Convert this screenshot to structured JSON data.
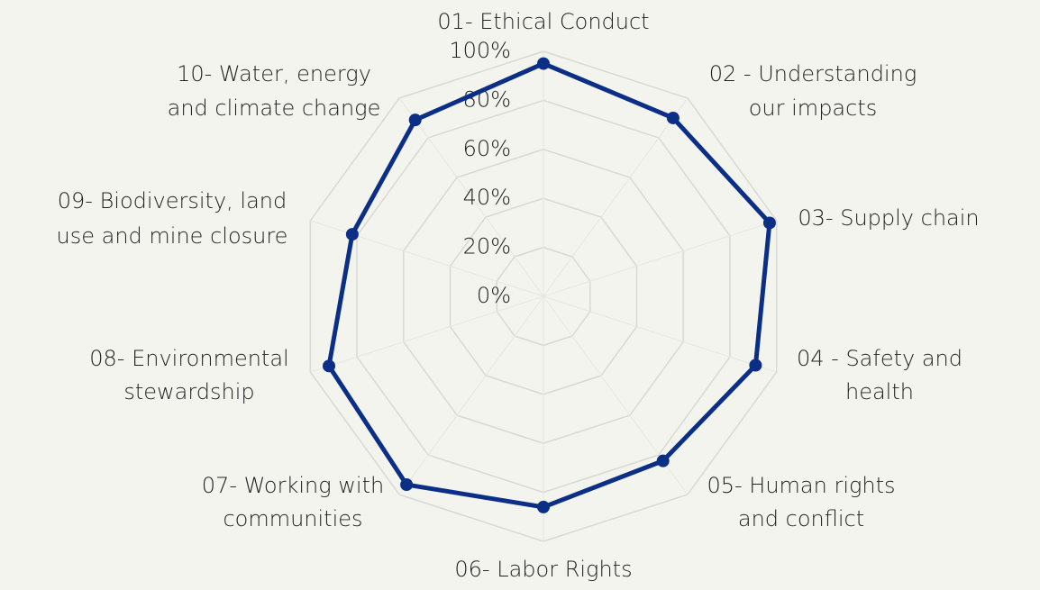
{
  "chart_data": {
    "type": "radar",
    "categories": [
      [
        "01- Ethical Conduct"
      ],
      [
        "02 - Understanding",
        "our impacts"
      ],
      [
        "03- Supply chain"
      ],
      [
        "04 - Safety and",
        "health"
      ],
      [
        "05- Human rights",
        "and conflict"
      ],
      [
        "06- Labor Rights"
      ],
      [
        "07- Working with",
        "communities"
      ],
      [
        "08- Environmental",
        "stewardship"
      ],
      [
        "09- Biodiversity, land",
        "use and mine closure"
      ],
      [
        "10- Water, energy",
        "and climate change"
      ]
    ],
    "series": [
      {
        "color": "#0b2f86",
        "values": [
          95,
          90,
          97,
          91,
          83,
          86,
          95,
          92,
          82,
          89
        ]
      }
    ],
    "rlim": [
      0,
      100
    ],
    "rticks": [
      {
        "value": 0,
        "label": "0%"
      },
      {
        "value": 20,
        "label": "20%"
      },
      {
        "value": 40,
        "label": "40%"
      },
      {
        "value": 60,
        "label": "60%"
      },
      {
        "value": 80,
        "label": "80%"
      },
      {
        "value": 100,
        "label": "100%"
      }
    ],
    "grid": true
  }
}
